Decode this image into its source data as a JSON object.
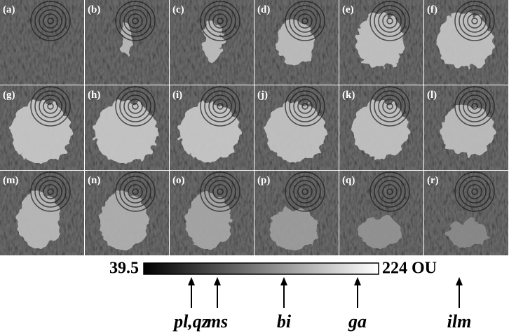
{
  "panels": [
    "(a)",
    "(b)",
    "(c)",
    "(d)",
    "(e)",
    "(f)",
    "(g)",
    "(h)",
    "(i)",
    "(j)",
    "(k)",
    "(l)",
    "(m)",
    "(n)",
    "(o)",
    "(p)",
    "(q)",
    "(r)"
  ],
  "colorbar": {
    "min_label": "39.5",
    "max_label": "224 OU"
  },
  "markers": [
    "pl,qz",
    "ms",
    "bi",
    "ga",
    "ilm"
  ]
}
